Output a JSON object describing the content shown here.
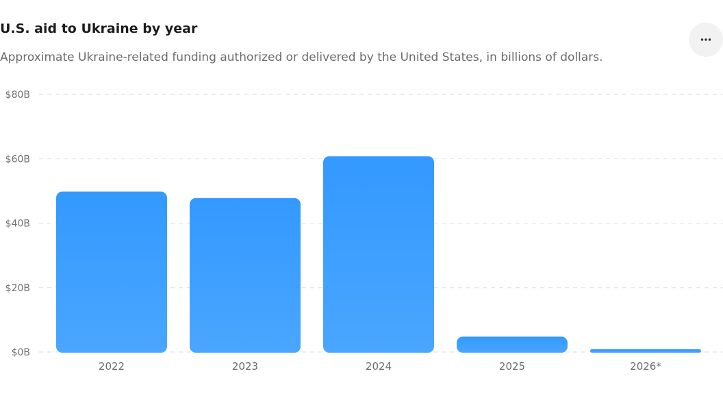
{
  "header": {
    "title": "U.S. aid to Ukraine by year",
    "subtitle": "Approximate Ukraine-related funding authorized or delivered by the United States, in billions of dollars.",
    "more_icon": "more-horizontal-icon"
  },
  "colors": {
    "bar_top": "#3399ff",
    "bar_bottom": "#4aa6ff",
    "grid": "#e4e4e4"
  },
  "chart_data": {
    "type": "bar",
    "title": "U.S. aid to Ukraine by year",
    "subtitle": "Approximate Ukraine-related funding authorized or delivered by the United States, in billions of dollars.",
    "categories": [
      "2022",
      "2023",
      "2024",
      "2025",
      "2026*"
    ],
    "values": [
      50,
      48,
      61,
      5,
      1
    ],
    "unit": "billions of dollars",
    "ylim": [
      0,
      80
    ],
    "yticks": [
      0,
      20,
      40,
      60,
      80
    ],
    "ytick_labels": [
      "$0B",
      "$20B",
      "$40B",
      "$60B",
      "$80B"
    ],
    "xlabel": "",
    "ylabel": "",
    "grid": true,
    "legend": "none"
  }
}
